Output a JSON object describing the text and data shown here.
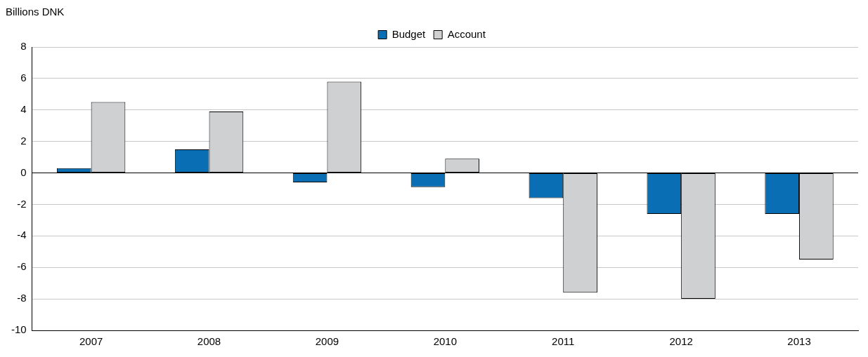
{
  "chart_data": {
    "type": "bar",
    "ylabel": "Billions DNK",
    "categories": [
      "2007",
      "2008",
      "2009",
      "2010",
      "2011",
      "2012",
      "2013"
    ],
    "series": [
      {
        "name": "Budget",
        "color": "#0a6eb4",
        "values": [
          0.3,
          1.5,
          -0.6,
          -0.9,
          -1.6,
          -2.6,
          -2.6
        ]
      },
      {
        "name": "Account",
        "color": "#cfd0d2",
        "values": [
          4.5,
          3.9,
          5.8,
          0.9,
          -7.6,
          -8.0,
          -5.5
        ]
      }
    ],
    "ylim": [
      -10,
      8
    ],
    "yticks": [
      -10,
      -8,
      -6,
      -4,
      -2,
      0,
      2,
      4,
      6,
      8
    ],
    "grid": "y",
    "legend": "top"
  }
}
